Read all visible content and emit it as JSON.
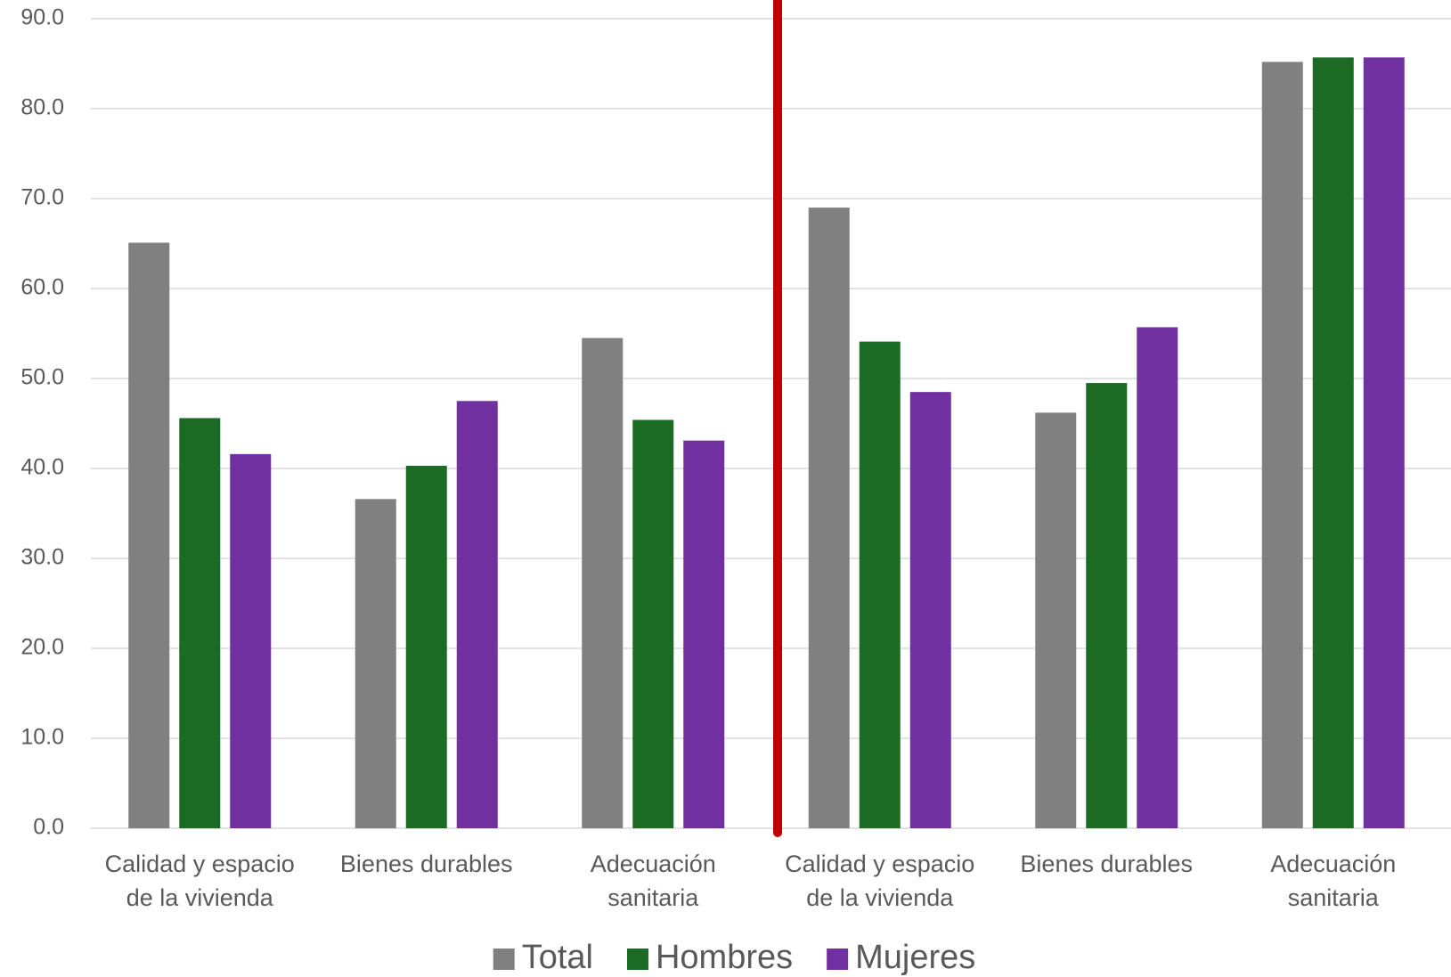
{
  "chart_data": {
    "type": "bar",
    "categories": [
      [
        "Calidad y espacio",
        "de la vivienda"
      ],
      [
        "Bienes durables"
      ],
      [
        "Adecuación",
        "sanitaria"
      ],
      [
        "Calidad y espacio",
        "de la vivienda"
      ],
      [
        "Bienes durables"
      ],
      [
        "Adecuación",
        "sanitaria"
      ]
    ],
    "series": [
      {
        "name": "Total",
        "color": "#808080",
        "values": [
          65.1,
          36.6,
          54.5,
          69.0,
          46.2,
          85.2
        ]
      },
      {
        "name": "Hombres",
        "color": "#1b6b24",
        "values": [
          45.6,
          40.3,
          45.4,
          54.1,
          49.5,
          85.7
        ]
      },
      {
        "name": "Mujeres",
        "color": "#7030a0",
        "values": [
          41.6,
          47.5,
          43.1,
          48.5,
          55.7,
          85.7
        ]
      }
    ],
    "ylim": [
      0,
      90
    ],
    "yticks": [
      {
        "value": 0,
        "label": "0.0"
      },
      {
        "value": 10,
        "label": "10.0"
      },
      {
        "value": 20,
        "label": "20.0"
      },
      {
        "value": 30,
        "label": "30.0"
      },
      {
        "value": 40,
        "label": "40.0"
      },
      {
        "value": 50,
        "label": "50.0"
      },
      {
        "value": 60,
        "label": "60.0"
      },
      {
        "value": 70,
        "label": "70.0"
      },
      {
        "value": 80,
        "label": "80.0"
      },
      {
        "value": 90,
        "label": "90.0"
      }
    ],
    "grid": true,
    "legend": "bottom"
  }
}
